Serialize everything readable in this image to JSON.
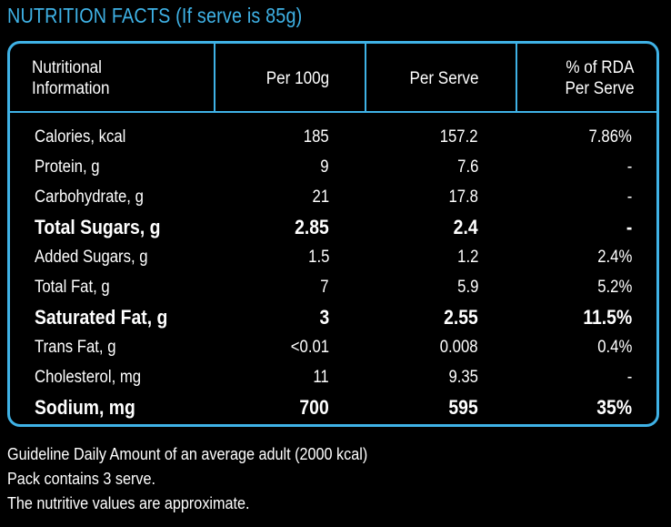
{
  "title": "NUTRITION FACTS (If serve is 85g)",
  "colors": {
    "accent": "#3fb2e6",
    "background": "#000000",
    "text": "#ffffff"
  },
  "headers": {
    "nutrient_line1": "Nutritional",
    "nutrient_line2": "Information",
    "per100": "Per 100g",
    "perserve": "Per Serve",
    "rda_line1": "% of RDA",
    "rda_line2": "Per Serve"
  },
  "rows": [
    {
      "name": "Calories, kcal",
      "per100": "185",
      "perserve": "157.2",
      "rda": "7.86%",
      "bold": false
    },
    {
      "name": "Protein, g",
      "per100": "9",
      "perserve": "7.6",
      "rda": "-",
      "bold": false
    },
    {
      "name": "Carbohydrate, g",
      "per100": "21",
      "perserve": "17.8",
      "rda": "-",
      "bold": false
    },
    {
      "name": "Total Sugars, g",
      "per100": "2.85",
      "perserve": "2.4",
      "rda": "-",
      "bold": true
    },
    {
      "name": "Added Sugars, g",
      "per100": "1.5",
      "perserve": "1.2",
      "rda": "2.4%",
      "bold": false
    },
    {
      "name": "Total Fat, g",
      "per100": "7",
      "perserve": "5.9",
      "rda": "5.2%",
      "bold": false
    },
    {
      "name": "Saturated Fat, g",
      "per100": "3",
      "perserve": "2.55",
      "rda": "11.5%",
      "bold": true
    },
    {
      "name": "Trans Fat, g",
      "per100": "<0.01",
      "perserve": "0.008",
      "rda": "0.4%",
      "bold": false
    },
    {
      "name": "Cholesterol, mg",
      "per100": "11",
      "perserve": "9.35",
      "rda": "-",
      "bold": false
    },
    {
      "name": "Sodium, mg",
      "per100": "700",
      "perserve": "595",
      "rda": "35%",
      "bold": true
    }
  ],
  "footer": {
    "line1": "Guideline Daily Amount of an average adult (2000 kcal)",
    "line2": "Pack contains 3 serve.",
    "line3": "The nutritive values are approximate."
  }
}
